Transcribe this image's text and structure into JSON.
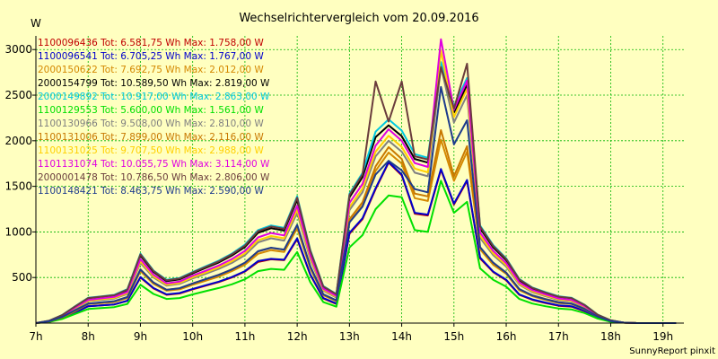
{
  "chart_data": {
    "type": "line",
    "title": "Wechselrichtervergleich vom 20.09.2016",
    "ylabel": "W",
    "xlabel": "",
    "credit": "SunnyReport pinxit",
    "xlim": [
      7,
      19.4
    ],
    "ylim": [
      0,
      3150
    ],
    "grid": true,
    "legend_position": "top-left",
    "x_ticks": [
      {
        "value": 7,
        "label": "7h"
      },
      {
        "value": 8,
        "label": "8h"
      },
      {
        "value": 9,
        "label": "9h"
      },
      {
        "value": 10,
        "label": "10h"
      },
      {
        "value": 11,
        "label": "11h"
      },
      {
        "value": 12,
        "label": "12h"
      },
      {
        "value": 13,
        "label": "13h"
      },
      {
        "value": 14,
        "label": "14h"
      },
      {
        "value": 15,
        "label": "15h"
      },
      {
        "value": 16,
        "label": "16h"
      },
      {
        "value": 17,
        "label": "17h"
      },
      {
        "value": 18,
        "label": "18h"
      },
      {
        "value": 19,
        "label": "19h"
      }
    ],
    "y_ticks": [
      {
        "value": 500,
        "label": "500"
      },
      {
        "value": 1000,
        "label": "1000"
      },
      {
        "value": 1500,
        "label": "1500"
      },
      {
        "value": 2000,
        "label": "2000"
      },
      {
        "value": 2500,
        "label": "2500"
      },
      {
        "value": 3000,
        "label": "3000"
      }
    ],
    "x": [
      7,
      7.25,
      7.5,
      7.75,
      8,
      8.25,
      8.5,
      8.75,
      9,
      9.25,
      9.5,
      9.75,
      10,
      10.25,
      10.5,
      10.75,
      11,
      11.25,
      11.5,
      11.75,
      12,
      12.25,
      12.5,
      12.75,
      13,
      13.25,
      13.5,
      13.75,
      14,
      14.25,
      14.5,
      14.75,
      15,
      15.25,
      15.5,
      15.75,
      16,
      16.25,
      16.5,
      16.75,
      17,
      17.25,
      17.5,
      17.75,
      18,
      18.25,
      18.5,
      18.75,
      19,
      19.25
    ],
    "series": [
      {
        "name": "1100096436",
        "legend": "1100096436 Tot: 6.581,75 Wh Max: 1.758,00 W",
        "color": "#c00000",
        "values": [
          0,
          15,
          55,
          115,
          185,
          195,
          205,
          245,
          500,
          380,
          310,
          325,
          370,
          410,
          450,
          500,
          565,
          670,
          700,
          690,
          920,
          530,
          270,
          210,
          980,
          1140,
          1470,
          1760,
          1620,
          1200,
          1180,
          1680,
          1300,
          1560,
          710,
          560,
          470,
          310,
          255,
          220,
          190,
          180,
          130,
          60,
          20,
          5,
          0,
          0,
          0,
          0
        ]
      },
      {
        "name": "1100096541",
        "legend": "1100096541 Tot: 6.705,25 Wh Max: 1.767,00 W",
        "color": "#0000cc",
        "values": [
          0,
          15,
          55,
          115,
          185,
          195,
          205,
          245,
          505,
          385,
          315,
          330,
          375,
          415,
          455,
          505,
          570,
          680,
          705,
          695,
          930,
          535,
          275,
          215,
          990,
          1150,
          1480,
          1767,
          1630,
          1210,
          1190,
          1690,
          1310,
          1570,
          720,
          565,
          475,
          315,
          260,
          225,
          195,
          185,
          135,
          60,
          20,
          5,
          0,
          0,
          0,
          0
        ]
      },
      {
        "name": "2000150622",
        "legend": "2000150622 Tot: 7.692,75 Wh Max: 2.012,00 W",
        "color": "#d48800",
        "values": [
          0,
          18,
          60,
          130,
          210,
          220,
          230,
          275,
          570,
          430,
          355,
          370,
          420,
          465,
          510,
          570,
          640,
          760,
          800,
          780,
          1040,
          600,
          305,
          240,
          1110,
          1290,
          1670,
          1870,
          1750,
          1370,
          1340,
          2012,
          1560,
          1880,
          810,
          640,
          540,
          360,
          295,
          255,
          220,
          210,
          150,
          70,
          25,
          5,
          0,
          0,
          0,
          0
        ]
      },
      {
        "name": "2000154799",
        "legend": "2000154799 Tot: 10.589,50 Wh Max: 2.819,00 W",
        "color": "#000000",
        "values": [
          0,
          25,
          85,
          180,
          270,
          285,
          300,
          360,
          740,
          560,
          460,
          480,
          545,
          605,
          665,
          740,
          835,
          990,
          1040,
          1015,
          1350,
          780,
          395,
          310,
          1380,
          1600,
          2040,
          2170,
          2050,
          1800,
          1760,
          2819,
          2310,
          2610,
          1040,
          830,
          690,
          470,
          380,
          330,
          285,
          270,
          195,
          90,
          30,
          5,
          0,
          0,
          0,
          0
        ]
      },
      {
        "name": "2000149892",
        "legend": "2000149892 Tot: 10.917,00 Wh Max: 2.863,00 W",
        "color": "#00c8e0",
        "values": [
          0,
          26,
          88,
          185,
          278,
          293,
          310,
          372,
          762,
          577,
          474,
          495,
          561,
          623,
          685,
          762,
          860,
          1020,
          1071,
          1045,
          1390,
          803,
          407,
          319,
          1420,
          1648,
          2100,
          2235,
          2111,
          1854,
          1813,
          2863,
          2380,
          2688,
          1071,
          855,
          711,
          484,
          391,
          340,
          294,
          278,
          201,
          93,
          31,
          5,
          0,
          0,
          0,
          0
        ]
      },
      {
        "name": "1100129553",
        "legend": "1100129553 Tot: 5.600,00 Wh Max: 1.561,00 W",
        "color": "#00e000",
        "values": [
          0,
          12,
          45,
          100,
          155,
          165,
          175,
          210,
          420,
          320,
          265,
          275,
          315,
          350,
          385,
          425,
          480,
          570,
          595,
          585,
          780,
          450,
          230,
          180,
          830,
          965,
          1250,
          1400,
          1380,
          1020,
          1000,
          1561,
          1210,
          1330,
          600,
          475,
          400,
          265,
          215,
          185,
          160,
          150,
          110,
          50,
          15,
          5,
          0,
          0,
          0,
          0
        ]
      },
      {
        "name": "1100130966",
        "legend": "1100130966 Tot: 9.508,00 Wh Max: 2.810,00 W",
        "color": "#808080",
        "values": [
          0,
          22,
          75,
          160,
          240,
          255,
          270,
          320,
          660,
          500,
          410,
          430,
          490,
          540,
          595,
          660,
          745,
          885,
          930,
          905,
          1210,
          700,
          355,
          280,
          1240,
          1435,
          1830,
          2000,
          1880,
          1650,
          1610,
          2810,
          2200,
          2500,
          935,
          745,
          620,
          420,
          340,
          295,
          255,
          240,
          175,
          80,
          25,
          5,
          0,
          0,
          0,
          0
        ]
      },
      {
        "name": "1100131006",
        "legend": "1100131006 Tot: 7.899,00 Wh Max: 2.116,00 W",
        "color": "#c87800",
        "values": [
          0,
          18,
          62,
          135,
          215,
          225,
          238,
          285,
          590,
          445,
          365,
          380,
          435,
          480,
          530,
          590,
          660,
          785,
          825,
          805,
          1075,
          620,
          315,
          248,
          1140,
          1325,
          1720,
          1930,
          1800,
          1420,
          1390,
          2116,
          1610,
          1940,
          835,
          660,
          555,
          370,
          305,
          265,
          230,
          215,
          155,
          75,
          25,
          5,
          0,
          0,
          0,
          0
        ]
      },
      {
        "name": "1100131025",
        "legend": "1100131025 Tot: 9.707,50 Wh Max: 2.988,00 W",
        "color": "#ffd000",
        "values": [
          0,
          23,
          78,
          165,
          245,
          262,
          277,
          330,
          678,
          513,
          421,
          441,
          503,
          555,
          611,
          678,
          765,
          909,
          955,
          930,
          1243,
          719,
          365,
          288,
          1273,
          1474,
          1880,
          2054,
          1931,
          1695,
          1654,
          2988,
          2260,
          2570,
          960,
          765,
          637,
          431,
          349,
          303,
          262,
          246,
          180,
          82,
          26,
          5,
          0,
          0,
          0,
          0
        ]
      },
      {
        "name": "1101131074",
        "legend": "1101131074 Tot: 10.055,75 Wh Max: 3.114,00 W",
        "color": "#e000e0",
        "values": [
          0,
          24,
          80,
          170,
          255,
          272,
          287,
          342,
          702,
          531,
          436,
          456,
          521,
          574,
          632,
          702,
          792,
          940,
          988,
          962,
          1287,
          744,
          378,
          298,
          1318,
          1526,
          1947,
          2126,
          1999,
          1755,
          1713,
          3114,
          2340,
          2660,
          994,
          792,
          659,
          446,
          362,
          314,
          271,
          255,
          186,
          85,
          27,
          5,
          0,
          0,
          0,
          0
        ]
      },
      {
        "name": "2000001478",
        "legend": "2000001478 Tot: 10.786,50 Wh Max: 2.806,00 W",
        "color": "#6a3c3c",
        "values": [
          0,
          26,
          87,
          183,
          275,
          290,
          306,
          367,
          754,
          571,
          469,
          489,
          555,
          616,
          677,
          754,
          850,
          1008,
          1059,
          1034,
          1375,
          794,
          402,
          316,
          1406,
          1630,
          2650,
          2210,
          2650,
          1830,
          1795,
          2806,
          2353,
          2845,
          1060,
          846,
          703,
          479,
          387,
          336,
          290,
          275,
          199,
          92,
          31,
          5,
          0,
          0,
          0,
          0
        ]
      },
      {
        "name": "1100148421",
        "legend": "1100148421 Tot: 8.463,75 Wh Max: 2.590,00 W",
        "color": "#1e3c8c",
        "values": [
          0,
          20,
          67,
          142,
          213,
          227,
          240,
          285,
          588,
          445,
          365,
          383,
          435,
          482,
          530,
          588,
          663,
          788,
          827,
          806,
          1077,
          623,
          316,
          249,
          1104,
          1278,
          1630,
          1780,
          1675,
          1470,
          1434,
          2590,
          1960,
          2225,
          832,
          663,
          552,
          374,
          303,
          263,
          227,
          214,
          156,
          71,
          22,
          5,
          0,
          0,
          0,
          0
        ]
      }
    ]
  }
}
